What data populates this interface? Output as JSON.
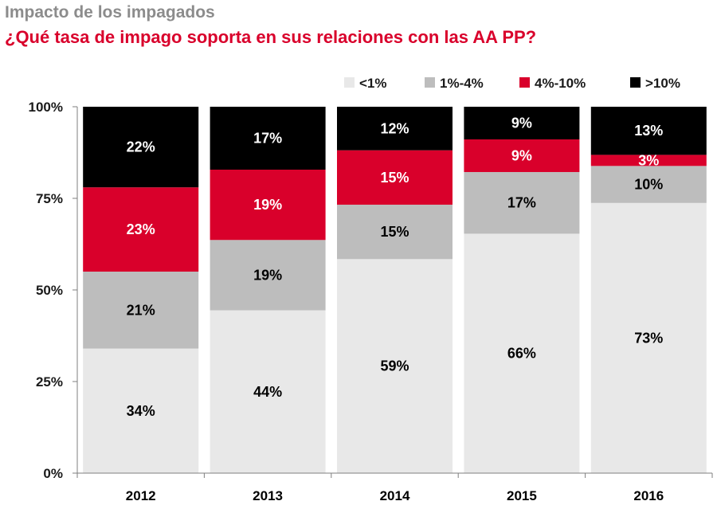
{
  "header": {
    "title": "Impacto de los impagados",
    "subtitle": "¿Qué tasa de impago soporta en sus relaciones con las AA PP?"
  },
  "chart_data": {
    "type": "bar",
    "stacked": true,
    "percent_stacked": true,
    "categories": [
      "2012",
      "2013",
      "2014",
      "2015",
      "2016"
    ],
    "series": [
      {
        "name": "<1%",
        "values": [
          34,
          44,
          59,
          66,
          73
        ],
        "color": "#e8e8e8",
        "label_color": "#000000"
      },
      {
        "name": "1%-4%",
        "values": [
          21,
          19,
          15,
          17,
          10
        ],
        "color": "#bdbdbd",
        "label_color": "#000000"
      },
      {
        "name": "4%-10%",
        "values": [
          23,
          19,
          15,
          9,
          3
        ],
        "color": "#d9002b",
        "label_color": "#ffffff"
      },
      {
        "name": ">10%",
        "values": [
          22,
          17,
          12,
          9,
          13
        ],
        "color": "#000000",
        "label_color": "#ffffff"
      }
    ],
    "data_labels": [
      [
        "34%",
        "44%",
        "59%",
        "66%",
        "73%"
      ],
      [
        "21%",
        "19%",
        "15%",
        "17%",
        "10%"
      ],
      [
        "23%",
        "19%",
        "15%",
        "9%",
        "3%"
      ],
      [
        "22%",
        "17%",
        "12%",
        "9%",
        "13%"
      ]
    ],
    "y_ticks": [
      "0%",
      "25%",
      "50%",
      "75%",
      "100%"
    ],
    "ylim": [
      0,
      100
    ],
    "legend_position": "top-right",
    "grid": false
  }
}
